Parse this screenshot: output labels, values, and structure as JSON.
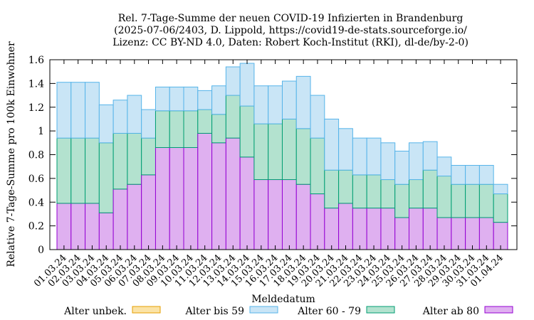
{
  "chart_data": {
    "type": "bar",
    "stacked": true,
    "title_lines": [
      "Rel. 7-Tage-Summe der neuen COVID-19 Infizierten in Brandenburg",
      "(2025-07-06/2403, D. Lippold, https://covid19-de-stats.sourceforge.io/",
      "Lizenz: CC BY-ND 4.0, Daten: Robert Koch-Institut (RKI), dl-de/by-2-0)"
    ],
    "xlabel": "Meldedatum",
    "ylabel": "Relative 7-Tage-Summe pro 100k Einwohner",
    "ylim": [
      0,
      1.6
    ],
    "yticks": [
      "0",
      "0.2",
      "0.4",
      "0.6",
      "0.8",
      "1",
      "1.2",
      "1.4",
      "1.6"
    ],
    "categories": [
      "01.03.24",
      "02.03.24",
      "03.03.24",
      "04.03.24",
      "05.03.24",
      "06.03.24",
      "07.03.24",
      "08.03.24",
      "09.03.24",
      "10.03.24",
      "11.03.24",
      "12.03.24",
      "13.03.24",
      "14.03.24",
      "15.03.24",
      "16.03.24",
      "17.03.24",
      "18.03.24",
      "19.03.24",
      "20.03.24",
      "21.03.24",
      "22.03.24",
      "23.03.24",
      "24.03.24",
      "25.03.24",
      "26.03.24",
      "27.03.24",
      "28.03.24",
      "29.03.24",
      "30.03.24",
      "31.03.24",
      "01.04.24"
    ],
    "series": [
      {
        "name": "Alter unbek.",
        "fill": "#fbe3a6",
        "stroke": "#e69f00",
        "values": [
          0,
          0,
          0,
          0,
          0,
          0,
          0,
          0,
          0,
          0,
          0,
          0,
          0,
          0,
          0,
          0,
          0,
          0,
          0,
          0,
          0,
          0,
          0,
          0,
          0,
          0,
          0,
          0,
          0,
          0,
          0,
          0
        ]
      },
      {
        "name": "Alter bis 59",
        "fill": "#c9e5f6",
        "stroke": "#56b4e9",
        "values": [
          0.47,
          0.47,
          0.47,
          0.32,
          0.28,
          0.32,
          0.24,
          0.2,
          0.2,
          0.2,
          0.16,
          0.24,
          0.24,
          0.36,
          0.32,
          0.32,
          0.32,
          0.44,
          0.36,
          0.43,
          0.35,
          0.31,
          0.31,
          0.31,
          0.28,
          0.31,
          0.24,
          0.16,
          0.16,
          0.16,
          0.16,
          0.08
        ]
      },
      {
        "name": "Alter 60 - 79",
        "fill": "#b3e2cf",
        "stroke": "#009e73",
        "values": [
          0.55,
          0.55,
          0.55,
          0.59,
          0.47,
          0.43,
          0.31,
          0.31,
          0.31,
          0.31,
          0.2,
          0.24,
          0.36,
          0.43,
          0.47,
          0.47,
          0.51,
          0.47,
          0.47,
          0.32,
          0.28,
          0.28,
          0.28,
          0.24,
          0.28,
          0.24,
          0.32,
          0.35,
          0.28,
          0.28,
          0.28,
          0.24
        ]
      },
      {
        "name": "Alter ab 80",
        "fill": "#dfb0f0",
        "stroke": "#9400d3",
        "values": [
          0.39,
          0.39,
          0.39,
          0.31,
          0.51,
          0.55,
          0.63,
          0.86,
          0.86,
          0.86,
          0.98,
          0.9,
          0.94,
          0.78,
          0.59,
          0.59,
          0.59,
          0.55,
          0.47,
          0.35,
          0.39,
          0.35,
          0.35,
          0.35,
          0.27,
          0.35,
          0.35,
          0.27,
          0.27,
          0.27,
          0.27,
          0.23
        ]
      }
    ],
    "grid": false,
    "legend_position": "bottom"
  }
}
